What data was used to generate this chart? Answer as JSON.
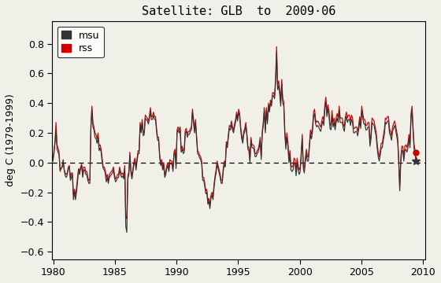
{
  "title": "Satellite: GLB  to  2009·06",
  "ylabel": "deg C (1979-1999)",
  "xlim": [
    1979.9,
    2010.2
  ],
  "ylim": [
    -0.65,
    0.95
  ],
  "yticks": [
    -0.6,
    -0.4,
    -0.2,
    0.0,
    0.2,
    0.4,
    0.6,
    0.8
  ],
  "xticks": [
    1980,
    1985,
    1990,
    1995,
    2000,
    2005,
    2010
  ],
  "msu_color": "#333333",
  "rss_color": "#cc0000",
  "bg_color": "#f0efe8",
  "start_year": 1979,
  "msu": [
    0.16,
    0.1,
    0.05,
    -0.02,
    0.06,
    0.1,
    0.12,
    0.06,
    0.03,
    0.06,
    0.0,
    0.01,
    0.06,
    0.13,
    0.22,
    0.09,
    0.07,
    0.05,
    -0.05,
    -0.04,
    -0.03,
    0.01,
    -0.05,
    -0.09,
    -0.1,
    -0.08,
    -0.04,
    -0.03,
    -0.12,
    -0.1,
    -0.08,
    -0.25,
    -0.2,
    -0.25,
    -0.2,
    -0.13,
    -0.05,
    -0.08,
    -0.04,
    -0.02,
    -0.1,
    -0.05,
    -0.05,
    -0.08,
    -0.08,
    -0.12,
    -0.14,
    -0.14,
    0.22,
    0.36,
    0.24,
    0.22,
    0.17,
    0.16,
    0.13,
    0.17,
    0.08,
    0.1,
    0.07,
    0.0,
    -0.04,
    -0.05,
    -0.07,
    -0.13,
    -0.1,
    -0.14,
    -0.1,
    -0.09,
    -0.08,
    -0.07,
    -0.05,
    -0.1,
    -0.13,
    -0.12,
    -0.1,
    -0.1,
    -0.05,
    -0.08,
    -0.1,
    -0.09,
    -0.11,
    -0.04,
    -0.43,
    -0.47,
    -0.11,
    -0.08,
    0.05,
    -0.07,
    -0.11,
    -0.06,
    -0.01,
    0.01,
    -0.05,
    0.01,
    0.06,
    0.06,
    0.25,
    0.2,
    0.27,
    0.18,
    0.19,
    0.3,
    0.29,
    0.28,
    0.26,
    0.29,
    0.35,
    0.29,
    0.29,
    0.32,
    0.29,
    0.29,
    0.21,
    0.15,
    0.15,
    0.04,
    -0.02,
    0.0,
    -0.05,
    -0.02,
    -0.1,
    -0.08,
    -0.04,
    -0.02,
    -0.06,
    0.0,
    -0.01,
    -0.01,
    -0.06,
    0.05,
    0.07,
    -0.04,
    0.2,
    0.22,
    0.2,
    0.22,
    0.07,
    0.09,
    0.06,
    0.07,
    0.2,
    0.21,
    0.17,
    0.19,
    0.19,
    0.21,
    0.22,
    0.34,
    0.27,
    0.2,
    0.27,
    0.16,
    0.06,
    0.05,
    0.03,
    0.02,
    -0.01,
    -0.12,
    -0.12,
    -0.16,
    -0.21,
    -0.2,
    -0.28,
    -0.26,
    -0.31,
    -0.24,
    -0.22,
    -0.25,
    -0.17,
    -0.11,
    -0.07,
    -0.01,
    -0.04,
    -0.07,
    -0.1,
    -0.14,
    -0.14,
    -0.06,
    -0.01,
    -0.03,
    0.12,
    0.1,
    0.17,
    0.23,
    0.22,
    0.26,
    0.22,
    0.2,
    0.24,
    0.27,
    0.32,
    0.28,
    0.34,
    0.31,
    0.22,
    0.16,
    0.13,
    0.19,
    0.21,
    0.25,
    0.18,
    0.09,
    0.08,
    0.0,
    0.15,
    0.1,
    0.1,
    0.09,
    0.04,
    0.04,
    0.06,
    0.07,
    0.1,
    0.15,
    0.02,
    0.19,
    0.25,
    0.35,
    0.2,
    0.35,
    0.26,
    0.38,
    0.34,
    0.4,
    0.38,
    0.45,
    0.45,
    0.43,
    0.54,
    0.74,
    0.49,
    0.52,
    0.46,
    0.38,
    0.53,
    0.4,
    0.38,
    0.19,
    0.09,
    0.17,
    0.11,
    0.0,
    0.05,
    -0.05,
    -0.06,
    -0.05,
    0.0,
    -0.01,
    -0.09,
    0.0,
    -0.05,
    -0.08,
    -0.06,
    0.04,
    0.16,
    -0.04,
    -0.07,
    0.0,
    0.06,
    0.01,
    0.01,
    0.1,
    0.19,
    0.16,
    0.21,
    0.31,
    0.33,
    0.26,
    0.24,
    0.25,
    0.24,
    0.22,
    0.21,
    0.25,
    0.28,
    0.25,
    0.36,
    0.41,
    0.31,
    0.36,
    0.32,
    0.23,
    0.22,
    0.32,
    0.24,
    0.27,
    0.22,
    0.27,
    0.3,
    0.27,
    0.35,
    0.27,
    0.27,
    0.27,
    0.23,
    0.21,
    0.28,
    0.31,
    0.27,
    0.29,
    0.29,
    0.25,
    0.29,
    0.27,
    0.2,
    0.2,
    0.21,
    0.21,
    0.18,
    0.22,
    0.28,
    0.23,
    0.35,
    0.3,
    0.26,
    0.26,
    0.22,
    0.22,
    0.24,
    0.24,
    0.11,
    0.16,
    0.27,
    0.26,
    0.25,
    0.21,
    0.18,
    0.1,
    0.04,
    0.01,
    0.05,
    0.1,
    0.1,
    0.15,
    0.19,
    0.27,
    0.26,
    0.28,
    0.28,
    0.2,
    0.18,
    0.15,
    0.21,
    0.23,
    0.25,
    0.22,
    0.18,
    0.14,
    0.0,
    -0.19,
    0.0,
    0.08,
    0.08,
    0.01,
    0.08,
    0.09,
    0.07,
    0.1,
    0.16,
    0.1,
    0.3,
    0.35,
    0.21,
    0.09,
    0.05,
    0.01
  ],
  "rss": [
    0.2,
    0.12,
    0.07,
    -0.01,
    0.04,
    0.09,
    0.1,
    0.08,
    0.05,
    0.07,
    0.0,
    0.02,
    0.08,
    0.14,
    0.27,
    0.12,
    0.1,
    0.07,
    -0.06,
    -0.04,
    -0.03,
    0.02,
    -0.05,
    -0.07,
    -0.08,
    -0.07,
    -0.03,
    -0.02,
    -0.1,
    -0.07,
    -0.07,
    -0.22,
    -0.18,
    -0.22,
    -0.17,
    -0.1,
    -0.04,
    -0.06,
    -0.03,
    -0.01,
    -0.08,
    -0.03,
    -0.03,
    -0.06,
    -0.06,
    -0.1,
    -0.12,
    -0.12,
    0.25,
    0.38,
    0.27,
    0.24,
    0.2,
    0.19,
    0.16,
    0.2,
    0.11,
    0.12,
    0.09,
    0.03,
    -0.03,
    -0.03,
    -0.05,
    -0.1,
    -0.08,
    -0.12,
    -0.08,
    -0.07,
    -0.06,
    -0.05,
    -0.03,
    -0.08,
    -0.11,
    -0.1,
    -0.08,
    -0.08,
    -0.03,
    -0.06,
    -0.08,
    -0.07,
    -0.09,
    -0.02,
    -0.36,
    -0.38,
    -0.09,
    -0.06,
    0.07,
    -0.05,
    -0.09,
    -0.04,
    0.01,
    0.03,
    -0.03,
    0.03,
    0.08,
    0.08,
    0.27,
    0.22,
    0.29,
    0.2,
    0.21,
    0.32,
    0.31,
    0.3,
    0.28,
    0.31,
    0.37,
    0.31,
    0.31,
    0.34,
    0.31,
    0.31,
    0.23,
    0.17,
    0.17,
    0.06,
    0.0,
    0.02,
    -0.03,
    0.0,
    -0.08,
    -0.06,
    -0.02,
    0.0,
    -0.04,
    0.02,
    0.01,
    0.01,
    -0.04,
    0.07,
    0.09,
    -0.02,
    0.22,
    0.24,
    0.22,
    0.24,
    0.09,
    0.11,
    0.08,
    0.09,
    0.22,
    0.23,
    0.19,
    0.21,
    0.21,
    0.23,
    0.24,
    0.36,
    0.29,
    0.22,
    0.29,
    0.18,
    0.08,
    0.07,
    0.05,
    0.04,
    0.01,
    -0.1,
    -0.1,
    -0.14,
    -0.19,
    -0.18,
    -0.26,
    -0.24,
    -0.29,
    -0.22,
    -0.2,
    -0.23,
    -0.15,
    -0.09,
    -0.05,
    0.01,
    -0.02,
    -0.05,
    -0.08,
    -0.12,
    -0.12,
    -0.04,
    0.01,
    -0.01,
    0.14,
    0.12,
    0.19,
    0.25,
    0.24,
    0.28,
    0.24,
    0.22,
    0.26,
    0.29,
    0.34,
    0.3,
    0.36,
    0.33,
    0.24,
    0.18,
    0.15,
    0.21,
    0.23,
    0.27,
    0.2,
    0.11,
    0.1,
    0.02,
    0.17,
    0.12,
    0.12,
    0.11,
    0.06,
    0.06,
    0.08,
    0.09,
    0.12,
    0.17,
    0.04,
    0.21,
    0.27,
    0.37,
    0.22,
    0.37,
    0.28,
    0.4,
    0.36,
    0.42,
    0.4,
    0.47,
    0.47,
    0.45,
    0.57,
    0.78,
    0.52,
    0.55,
    0.49,
    0.41,
    0.56,
    0.43,
    0.41,
    0.22,
    0.12,
    0.2,
    0.14,
    0.03,
    0.08,
    -0.02,
    -0.03,
    -0.02,
    0.03,
    0.02,
    -0.06,
    0.03,
    -0.02,
    -0.05,
    -0.03,
    0.07,
    0.19,
    -0.01,
    -0.04,
    0.03,
    0.09,
    0.04,
    0.04,
    0.13,
    0.22,
    0.19,
    0.24,
    0.34,
    0.36,
    0.29,
    0.27,
    0.28,
    0.27,
    0.25,
    0.24,
    0.28,
    0.31,
    0.28,
    0.39,
    0.44,
    0.34,
    0.39,
    0.35,
    0.26,
    0.25,
    0.35,
    0.27,
    0.3,
    0.25,
    0.3,
    0.33,
    0.3,
    0.38,
    0.3,
    0.3,
    0.3,
    0.26,
    0.24,
    0.31,
    0.34,
    0.3,
    0.32,
    0.32,
    0.28,
    0.32,
    0.3,
    0.23,
    0.23,
    0.24,
    0.24,
    0.21,
    0.25,
    0.31,
    0.26,
    0.38,
    0.33,
    0.29,
    0.29,
    0.25,
    0.25,
    0.27,
    0.27,
    0.14,
    0.19,
    0.3,
    0.29,
    0.28,
    0.24,
    0.21,
    0.13,
    0.07,
    0.04,
    0.08,
    0.13,
    0.13,
    0.18,
    0.22,
    0.3,
    0.29,
    0.31,
    0.31,
    0.23,
    0.21,
    0.18,
    0.24,
    0.26,
    0.28,
    0.25,
    0.21,
    0.17,
    0.03,
    -0.16,
    0.03,
    0.11,
    0.11,
    0.04,
    0.11,
    0.12,
    0.1,
    0.13,
    0.19,
    0.13,
    0.33,
    0.38,
    0.24,
    0.12,
    0.08,
    0.07
  ]
}
